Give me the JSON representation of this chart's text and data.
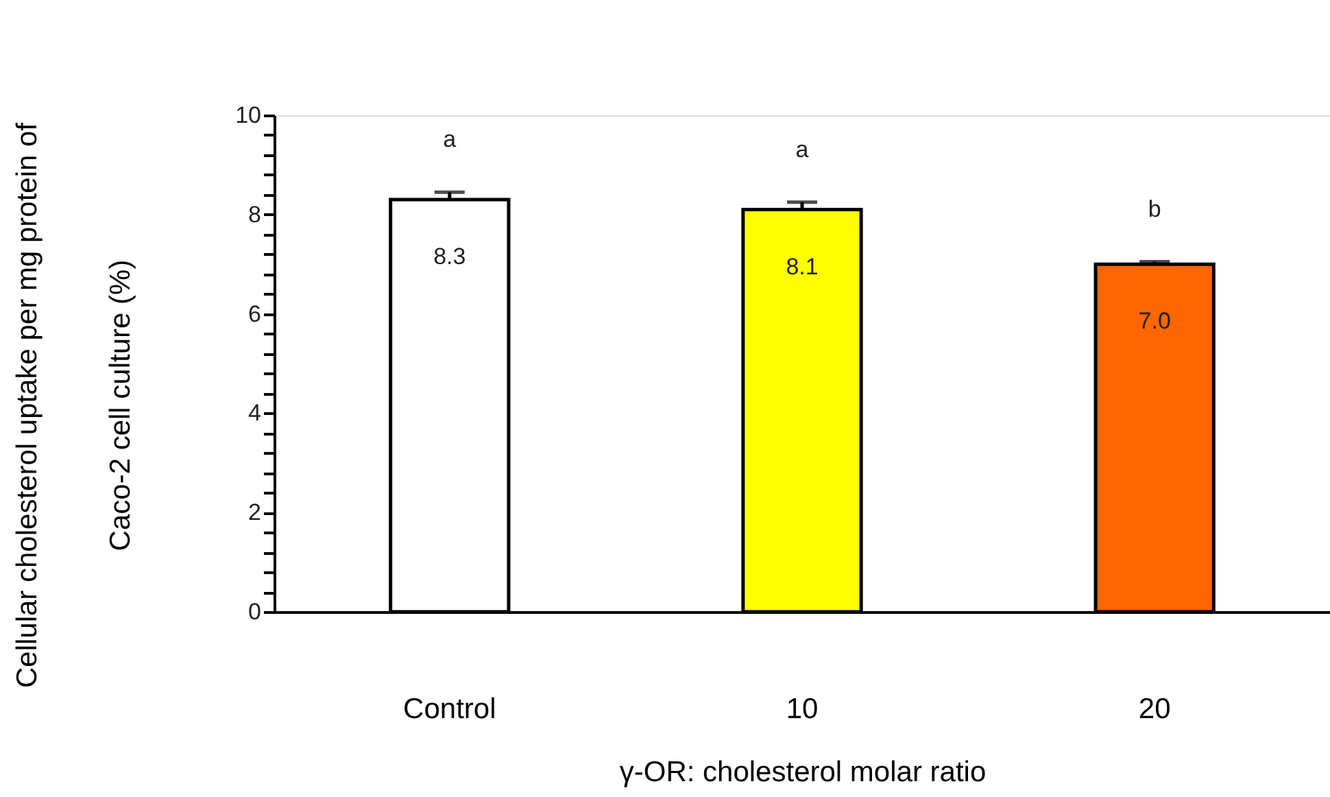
{
  "chart_data": {
    "type": "bar",
    "categories": [
      "Control",
      "10",
      "20"
    ],
    "values": [
      8.3,
      8.1,
      7.0
    ],
    "colors": [
      "#ffffff",
      "#ffff00",
      "#ff6600"
    ],
    "errors": [
      0.15,
      0.15,
      0.05
    ],
    "value_labels": [
      "8.3",
      "8.1",
      "7.0"
    ],
    "ylim": [
      0,
      10
    ],
    "yticks": [
      0,
      {
        "value": 0.4,
        "label": null
      },
      {
        "value": 0.8,
        "label": null
      },
      {
        "value": 1.2,
        "label": null
      },
      {
        "value": 1.6,
        "label": null
      },
      2,
      {
        "value": 2.4,
        "label": null
      },
      {
        "value": 2.8,
        "label": null
      },
      {
        "value": 3.2,
        "label": null
      },
      {
        "value": 3.6,
        "label": null
      },
      4,
      {
        "value": 4.4,
        "label": null
      },
      {
        "value": 4.8,
        "label": null
      },
      {
        "value": 5.2,
        "label": null
      },
      {
        "value": 5.6,
        "label": null
      },
      6,
      {
        "value": 6.4,
        "label": null
      },
      {
        "value": 6.8,
        "label": null
      },
      {
        "value": 7.2,
        "label": null
      },
      {
        "value": 7.6,
        "label": null
      },
      8,
      {
        "value": 8.4,
        "label": null
      },
      {
        "value": 8.8,
        "label": null
      },
      {
        "value": 9.2,
        "label": null
      },
      {
        "value": 9.6,
        "label": null
      },
      10
    ],
    "xlabel": "γ-OR: cholesterol molar ratio",
    "ylabel": "Cellular cholesterol uptake per mg protein of\nCaco-2 cell culture (%)",
    "annotations": [
      "a",
      "a",
      "b"
    ],
    "grid": false
  }
}
